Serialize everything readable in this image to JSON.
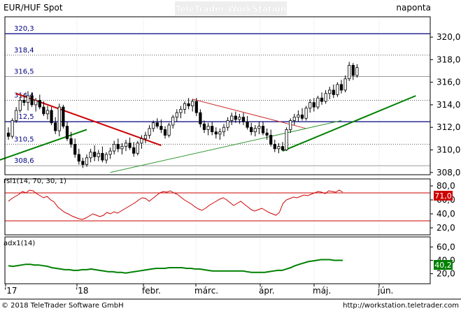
{
  "header": {
    "title": "EUR/HUF Spot",
    "watermark": "TeleTrader WorkStation",
    "period": "naponta"
  },
  "footer": {
    "copyright": "© 2018 TeleTrader Software GmbH",
    "url": "http://workstation.teletrader.com"
  },
  "colors": {
    "up": "#008000",
    "down": "#000000",
    "trend_red": "#cc0000",
    "trend_green": "#008000",
    "thin_red": "#cc3333",
    "thin_green": "#339933",
    "hline": "#000080",
    "rsi_line": "#cc0000",
    "adx_line": "#008000",
    "badge_rsi": "#cc0000",
    "badge_adx": "#008000"
  },
  "x_labels": [
    "'17",
    "'18",
    "febr.",
    "márc.",
    "ápr.",
    "máj.",
    "jún."
  ],
  "chart_data": [
    {
      "type": "candlestick",
      "series_name": "EUR/HUF Spot",
      "ylim": [
        307.8,
        321.8
      ],
      "yticks": [
        "308,0",
        "310,0",
        "312,0",
        "314,0",
        "316,0",
        "318,0",
        "320,0"
      ],
      "horizontal_lines": [
        {
          "value": 320.3,
          "label": "320,3",
          "style": "solid"
        },
        {
          "value": 318.4,
          "label": "318,4",
          "style": "dotted"
        },
        {
          "value": 316.5,
          "label": "316,5",
          "style": "solid-gray"
        },
        {
          "value": 314.4,
          "label": "314,4",
          "style": "dotted"
        },
        {
          "value": 312.5,
          "label": "312,5",
          "style": "solid"
        },
        {
          "value": 310.5,
          "label": "310,5",
          "style": "dotted"
        },
        {
          "value": 308.6,
          "label": "308,6",
          "style": "solid-gray"
        }
      ],
      "trendlines": [
        {
          "color": "trend_red",
          "width": 2,
          "from": [
            2,
            315.0
          ],
          "to": [
            39,
            310.4
          ]
        },
        {
          "color": "trend_green",
          "width": 2,
          "from": [
            -8,
            308.4
          ],
          "to": [
            20,
            311.8
          ]
        },
        {
          "color": "thin_red",
          "width": 1,
          "from": [
            47,
            314.5
          ],
          "to": [
            76,
            311.9
          ]
        },
        {
          "color": "thin_green",
          "width": 1,
          "from": [
            26,
            308.0
          ],
          "to": [
            85,
            312.6
          ]
        },
        {
          "color": "trend_green",
          "width": 2,
          "from": [
            70,
            309.9
          ],
          "to": [
            104,
            314.8
          ]
        }
      ],
      "candles": [
        [
          311.5,
          312.0,
          310.9,
          311.2
        ],
        [
          311.2,
          312.8,
          311.0,
          312.6
        ],
        [
          312.6,
          313.8,
          312.4,
          313.5
        ],
        [
          313.5,
          314.7,
          313.3,
          314.4
        ],
        [
          314.4,
          315.0,
          313.9,
          314.2
        ],
        [
          314.2,
          315.2,
          313.5,
          314.8
        ],
        [
          314.8,
          315.1,
          313.8,
          314.0
        ],
        [
          314.0,
          314.6,
          313.4,
          314.4
        ],
        [
          314.4,
          314.9,
          313.6,
          313.8
        ],
        [
          313.8,
          314.3,
          313.0,
          313.2
        ],
        [
          313.2,
          313.9,
          312.7,
          313.5
        ],
        [
          313.5,
          313.8,
          312.2,
          312.4
        ],
        [
          312.4,
          312.9,
          311.4,
          311.7
        ],
        [
          311.7,
          314.1,
          311.2,
          313.8
        ],
        [
          313.8,
          314.0,
          311.9,
          312.1
        ],
        [
          312.1,
          312.5,
          310.8,
          311.0
        ],
        [
          311.0,
          311.6,
          310.2,
          310.5
        ],
        [
          310.5,
          311.0,
          309.3,
          309.6
        ],
        [
          309.6,
          310.1,
          308.7,
          309.0
        ],
        [
          309.0,
          309.3,
          308.4,
          308.7
        ],
        [
          308.7,
          309.6,
          308.5,
          309.3
        ],
        [
          309.3,
          310.1,
          308.9,
          309.8
        ],
        [
          309.8,
          310.4,
          309.0,
          309.4
        ],
        [
          309.4,
          310.0,
          309.0,
          309.7
        ],
        [
          309.7,
          310.3,
          308.9,
          309.1
        ],
        [
          309.1,
          309.8,
          308.8,
          309.6
        ],
        [
          309.6,
          310.2,
          309.2,
          309.9
        ],
        [
          309.9,
          310.8,
          309.6,
          310.5
        ],
        [
          310.5,
          311.0,
          309.8,
          310.1
        ],
        [
          310.1,
          310.6,
          309.6,
          310.3
        ],
        [
          310.3,
          310.9,
          309.9,
          310.6
        ],
        [
          310.6,
          311.1,
          310.0,
          310.2
        ],
        [
          310.2,
          310.7,
          309.4,
          309.7
        ],
        [
          309.7,
          310.8,
          309.5,
          310.6
        ],
        [
          310.6,
          311.3,
          310.1,
          311.0
        ],
        [
          311.0,
          311.6,
          310.6,
          311.3
        ],
        [
          311.3,
          312.2,
          311.0,
          311.9
        ],
        [
          311.9,
          312.6,
          311.6,
          312.4
        ],
        [
          312.4,
          312.8,
          311.9,
          312.1
        ],
        [
          312.1,
          312.7,
          311.5,
          311.8
        ],
        [
          311.8,
          312.1,
          311.0,
          311.3
        ],
        [
          311.3,
          312.4,
          311.1,
          312.2
        ],
        [
          312.2,
          313.1,
          311.9,
          312.9
        ],
        [
          312.9,
          313.6,
          312.5,
          313.3
        ],
        [
          313.3,
          313.9,
          312.8,
          313.6
        ],
        [
          313.6,
          314.3,
          313.2,
          314.1
        ],
        [
          314.1,
          314.6,
          313.6,
          313.9
        ],
        [
          313.9,
          314.5,
          313.4,
          314.3
        ],
        [
          314.3,
          314.6,
          313.0,
          313.3
        ],
        [
          313.3,
          313.6,
          312.0,
          312.3
        ],
        [
          312.3,
          312.6,
          311.5,
          311.8
        ],
        [
          311.8,
          312.4,
          311.3,
          312.1
        ],
        [
          312.1,
          312.5,
          311.3,
          311.6
        ],
        [
          311.6,
          312.0,
          311.0,
          311.4
        ],
        [
          311.4,
          311.9,
          310.9,
          311.6
        ],
        [
          311.6,
          312.3,
          311.2,
          312.0
        ],
        [
          312.0,
          312.9,
          311.7,
          312.6
        ],
        [
          312.6,
          313.3,
          312.2,
          313.0
        ],
        [
          313.0,
          313.4,
          312.4,
          312.7
        ],
        [
          312.7,
          313.2,
          312.3,
          312.9
        ],
        [
          312.9,
          313.3,
          312.2,
          312.5
        ],
        [
          312.5,
          313.0,
          311.8,
          312.0
        ],
        [
          312.0,
          312.4,
          311.3,
          311.6
        ],
        [
          311.6,
          312.2,
          311.2,
          311.9
        ],
        [
          311.9,
          312.5,
          311.4,
          312.1
        ],
        [
          312.1,
          312.5,
          311.3,
          311.5
        ],
        [
          311.5,
          311.9,
          310.9,
          311.3
        ],
        [
          311.3,
          311.8,
          310.3,
          310.5
        ],
        [
          310.5,
          310.9,
          309.8,
          310.1
        ],
        [
          310.1,
          310.6,
          309.7,
          310.3
        ],
        [
          310.3,
          310.7,
          309.9,
          310.0
        ],
        [
          310.0,
          312.0,
          309.9,
          311.8
        ],
        [
          311.8,
          312.8,
          311.5,
          312.6
        ],
        [
          312.6,
          313.2,
          312.2,
          312.9
        ],
        [
          312.9,
          313.5,
          312.5,
          313.1
        ],
        [
          313.1,
          313.7,
          312.6,
          312.8
        ],
        [
          312.8,
          313.9,
          312.6,
          313.7
        ],
        [
          313.7,
          314.5,
          313.3,
          314.2
        ],
        [
          314.2,
          314.6,
          313.4,
          313.8
        ],
        [
          313.8,
          314.8,
          313.6,
          314.6
        ],
        [
          314.6,
          315.1,
          314.0,
          314.3
        ],
        [
          314.3,
          315.3,
          314.1,
          315.0
        ],
        [
          315.0,
          315.6,
          314.5,
          315.3
        ],
        [
          315.3,
          315.8,
          314.6,
          314.9
        ],
        [
          314.9,
          316.0,
          314.7,
          315.8
        ],
        [
          315.8,
          316.2,
          315.0,
          315.3
        ],
        [
          315.3,
          316.6,
          315.1,
          316.3
        ],
        [
          316.3,
          317.8,
          316.1,
          317.5
        ],
        [
          317.5,
          317.7,
          316.2,
          316.6
        ],
        [
          316.6,
          317.6,
          316.4,
          317.3
        ]
      ]
    },
    {
      "type": "line",
      "label": "rsi1(14, 70, 30, 1)",
      "ylim": [
        10,
        90
      ],
      "yticks": [
        "20,0",
        "40,0",
        "60,0",
        "80,0"
      ],
      "levels": [
        70,
        30
      ],
      "last_value_label": "71,0",
      "values": [
        58,
        62,
        65,
        68,
        72,
        70,
        74,
        73,
        69,
        66,
        63,
        65,
        60,
        57,
        50,
        46,
        42,
        40,
        37,
        35,
        33,
        32,
        34,
        37,
        40,
        38,
        36,
        38,
        42,
        40,
        43,
        41,
        44,
        47,
        50,
        53,
        56,
        60,
        63,
        62,
        58,
        62,
        66,
        70,
        72,
        71,
        73,
        70,
        68,
        64,
        60,
        57,
        54,
        50,
        47,
        45,
        48,
        52,
        55,
        58,
        61,
        63,
        60,
        56,
        52,
        55,
        58,
        54,
        50,
        46,
        44,
        46,
        48,
        45,
        42,
        40,
        38,
        42,
        55,
        60,
        62,
        64,
        63,
        65,
        67,
        66,
        68,
        70,
        72,
        71,
        69,
        73,
        72,
        71,
        74,
        71
      ]
    },
    {
      "type": "line",
      "label": "adx1(14)",
      "ylim": [
        5,
        75
      ],
      "yticks": [
        "20,0",
        "40,0",
        "60,0"
      ],
      "last_value_label": "40,2",
      "values": [
        32,
        31,
        32,
        33,
        34,
        34,
        33,
        33,
        32,
        31,
        29,
        28,
        27,
        26,
        26,
        25,
        25,
        26,
        26,
        27,
        26,
        25,
        24,
        23,
        23,
        22,
        22,
        21,
        22,
        23,
        24,
        25,
        26,
        27,
        28,
        28,
        28,
        29,
        29,
        29,
        29,
        28,
        28,
        27,
        27,
        26,
        25,
        24,
        24,
        24,
        24,
        24,
        24,
        24,
        24,
        23,
        22,
        22,
        22,
        22,
        23,
        24,
        25,
        25,
        27,
        29,
        32,
        34,
        36,
        38,
        39,
        40,
        41,
        41,
        41,
        40,
        40,
        40
      ]
    }
  ]
}
